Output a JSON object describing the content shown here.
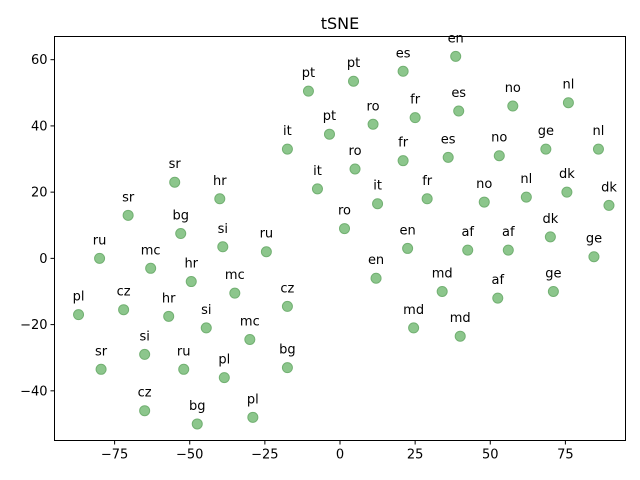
{
  "chart_data": {
    "type": "scatter",
    "title": "tSNE",
    "xlabel": "",
    "ylabel": "",
    "xlim": [
      -95,
      95
    ],
    "ylim": [
      -55,
      67
    ],
    "xticks": [
      -75,
      -50,
      -25,
      0,
      25,
      50,
      75
    ],
    "yticks": [
      -40,
      -20,
      0,
      20,
      40,
      60
    ],
    "grid": false,
    "marker_color": "#8cc68c",
    "marker_edge_color": "#72b072",
    "points": [
      {
        "label": "en",
        "x": 38.5,
        "y": 61
      },
      {
        "label": "es",
        "x": 21,
        "y": 56.5
      },
      {
        "label": "pt",
        "x": 4.5,
        "y": 53.5
      },
      {
        "label": "pt",
        "x": -10.5,
        "y": 50.5
      },
      {
        "label": "nl",
        "x": 76,
        "y": 47
      },
      {
        "label": "no",
        "x": 57.5,
        "y": 46
      },
      {
        "label": "es",
        "x": 39.5,
        "y": 44.5
      },
      {
        "label": "fr",
        "x": 25,
        "y": 42.5
      },
      {
        "label": "ro",
        "x": 11,
        "y": 40.5
      },
      {
        "label": "pt",
        "x": -3.5,
        "y": 37.5
      },
      {
        "label": "ge",
        "x": 68.5,
        "y": 33
      },
      {
        "label": "nl",
        "x": 86,
        "y": 33
      },
      {
        "label": "it",
        "x": -17.5,
        "y": 33
      },
      {
        "label": "no",
        "x": 53,
        "y": 31
      },
      {
        "label": "es",
        "x": 36,
        "y": 30.5
      },
      {
        "label": "fr",
        "x": 21,
        "y": 29.5
      },
      {
        "label": "ro",
        "x": 5,
        "y": 27
      },
      {
        "label": "sr",
        "x": -55,
        "y": 23
      },
      {
        "label": "it",
        "x": -7.5,
        "y": 21
      },
      {
        "label": "dk",
        "x": 75.5,
        "y": 20
      },
      {
        "label": "nl",
        "x": 62,
        "y": 18.5
      },
      {
        "label": "hr",
        "x": -40,
        "y": 18
      },
      {
        "label": "fr",
        "x": 29,
        "y": 18
      },
      {
        "label": "no",
        "x": 48,
        "y": 17
      },
      {
        "label": "it",
        "x": 12.5,
        "y": 16.5
      },
      {
        "label": "dk",
        "x": 89.5,
        "y": 16
      },
      {
        "label": "sr",
        "x": -70.5,
        "y": 13
      },
      {
        "label": "ro",
        "x": 1.5,
        "y": 9
      },
      {
        "label": "bg",
        "x": -53,
        "y": 7.5
      },
      {
        "label": "dk",
        "x": 70,
        "y": 6.5
      },
      {
        "label": "si",
        "x": -39,
        "y": 3.5
      },
      {
        "label": "en",
        "x": 22.5,
        "y": 3
      },
      {
        "label": "af",
        "x": 42.5,
        "y": 2.5
      },
      {
        "label": "af",
        "x": 56,
        "y": 2.5
      },
      {
        "label": "ru",
        "x": -24.5,
        "y": 2
      },
      {
        "label": "ge",
        "x": 84.5,
        "y": 0.5
      },
      {
        "label": "ru",
        "x": -80,
        "y": 0
      },
      {
        "label": "mc",
        "x": -63,
        "y": -3
      },
      {
        "label": "en",
        "x": 12,
        "y": -6
      },
      {
        "label": "hr",
        "x": -49.5,
        "y": -7
      },
      {
        "label": "md",
        "x": 34,
        "y": -10
      },
      {
        "label": "ge",
        "x": 71,
        "y": -10
      },
      {
        "label": "mc",
        "x": -35,
        "y": -10.5
      },
      {
        "label": "af",
        "x": 52.5,
        "y": -12
      },
      {
        "label": "cz",
        "x": -17.5,
        "y": -14.5
      },
      {
        "label": "cz",
        "x": -72,
        "y": -15.5
      },
      {
        "label": "pl",
        "x": -87,
        "y": -17
      },
      {
        "label": "hr",
        "x": -57,
        "y": -17.5
      },
      {
        "label": "md",
        "x": 24.5,
        "y": -21
      },
      {
        "label": "si",
        "x": -44.5,
        "y": -21
      },
      {
        "label": "md",
        "x": 40,
        "y": -23.5
      },
      {
        "label": "mc",
        "x": -30,
        "y": -24.5
      },
      {
        "label": "si",
        "x": -65,
        "y": -29
      },
      {
        "label": "bg",
        "x": -17.5,
        "y": -33
      },
      {
        "label": "ru",
        "x": -52,
        "y": -33.5
      },
      {
        "label": "sr",
        "x": -79.5,
        "y": -33.5
      },
      {
        "label": "pl",
        "x": -38.5,
        "y": -36
      },
      {
        "label": "cz",
        "x": -65,
        "y": -46
      },
      {
        "label": "pl",
        "x": -29,
        "y": -48
      },
      {
        "label": "bg",
        "x": -47.5,
        "y": -50
      }
    ]
  }
}
